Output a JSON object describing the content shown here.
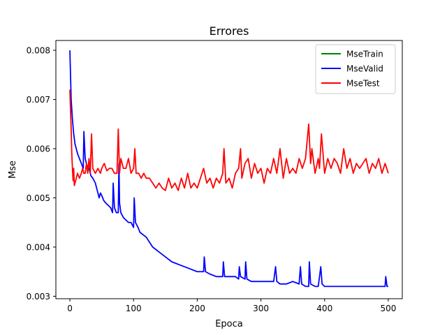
{
  "chart_data": {
    "type": "line",
    "title": "Errores",
    "xlabel": "Epoca",
    "ylabel": "Mse",
    "xlim": [
      -22,
      522
    ],
    "ylim": [
      0.00295,
      0.0082
    ],
    "xticks": [
      0,
      100,
      200,
      300,
      400,
      500
    ],
    "yticks": [
      0.003,
      0.004,
      0.005,
      0.006,
      0.007,
      0.008
    ],
    "ytick_labels": [
      "0.003",
      "0.004",
      "0.005",
      "0.006",
      "0.007",
      "0.008"
    ],
    "grid": false,
    "legend_position": "top-right",
    "series": [
      {
        "name": "MseTrain",
        "color": "#008000",
        "x": [],
        "y": []
      },
      {
        "name": "MseValid",
        "color": "#0000ff",
        "x": [
          0,
          2,
          4,
          6,
          8,
          10,
          12,
          15,
          18,
          21,
          22,
          24,
          27,
          30,
          33,
          36,
          40,
          43,
          46,
          48,
          50,
          53,
          56,
          60,
          64,
          67,
          68,
          70,
          73,
          76,
          77,
          78,
          80,
          84,
          88,
          92,
          96,
          100,
          101,
          103,
          107,
          110,
          115,
          120,
          125,
          130,
          135,
          140,
          145,
          150,
          160,
          170,
          180,
          190,
          200,
          210,
          211,
          213,
          220,
          230,
          240,
          241,
          243,
          250,
          260,
          265,
          266,
          268,
          275,
          276,
          278,
          285,
          290,
          300,
          310,
          320,
          323,
          325,
          330,
          340,
          350,
          360,
          362,
          364,
          370,
          375,
          376,
          378,
          385,
          390,
          394,
          396,
          400,
          410,
          420,
          430,
          440,
          450,
          460,
          470,
          480,
          490,
          495,
          496,
          498,
          500
        ],
        "y": [
          0.008,
          0.007,
          0.0066,
          0.0063,
          0.0061,
          0.006,
          0.0059,
          0.0058,
          0.0057,
          0.0056,
          0.00635,
          0.0058,
          0.00565,
          0.0056,
          0.00545,
          0.0054,
          0.0053,
          0.00515,
          0.005,
          0.0051,
          0.00505,
          0.00495,
          0.0049,
          0.00485,
          0.0048,
          0.0047,
          0.0053,
          0.0048,
          0.0047,
          0.0047,
          0.0057,
          0.0049,
          0.0047,
          0.0046,
          0.00455,
          0.0045,
          0.0045,
          0.0044,
          0.005,
          0.0045,
          0.0044,
          0.0043,
          0.00425,
          0.0042,
          0.0041,
          0.004,
          0.00395,
          0.0039,
          0.00385,
          0.0038,
          0.0037,
          0.00365,
          0.0036,
          0.00355,
          0.0035,
          0.0035,
          0.0038,
          0.0035,
          0.00345,
          0.0034,
          0.0034,
          0.0037,
          0.0034,
          0.0034,
          0.0034,
          0.00335,
          0.0036,
          0.0034,
          0.00335,
          0.0037,
          0.00335,
          0.0033,
          0.0033,
          0.0033,
          0.0033,
          0.0033,
          0.0036,
          0.0033,
          0.00325,
          0.00325,
          0.0033,
          0.00325,
          0.0036,
          0.00325,
          0.0032,
          0.0032,
          0.0037,
          0.00325,
          0.0032,
          0.0032,
          0.0036,
          0.00325,
          0.0032,
          0.0032,
          0.0032,
          0.0032,
          0.0032,
          0.0032,
          0.0032,
          0.0032,
          0.0032,
          0.0032,
          0.0032,
          0.0034,
          0.0032,
          0.0032
        ]
      },
      {
        "name": "MseTest",
        "color": "#ff0000",
        "x": [
          0,
          1,
          2,
          3,
          4,
          5,
          6,
          7,
          8,
          10,
          12,
          15,
          18,
          20,
          22,
          24,
          26,
          28,
          30,
          32,
          34,
          36,
          40,
          44,
          48,
          50,
          54,
          58,
          62,
          66,
          70,
          74,
          76,
          78,
          80,
          84,
          88,
          92,
          96,
          100,
          102,
          104,
          108,
          112,
          116,
          120,
          125,
          130,
          135,
          140,
          145,
          150,
          155,
          160,
          165,
          170,
          175,
          180,
          185,
          190,
          195,
          200,
          205,
          210,
          215,
          220,
          225,
          230,
          235,
          240,
          242,
          245,
          250,
          255,
          260,
          265,
          268,
          270,
          275,
          280,
          285,
          290,
          295,
          300,
          305,
          310,
          315,
          320,
          325,
          330,
          335,
          340,
          345,
          350,
          355,
          360,
          365,
          370,
          375,
          378,
          380,
          385,
          390,
          392,
          395,
          400,
          405,
          410,
          415,
          420,
          425,
          430,
          435,
          440,
          445,
          450,
          455,
          460,
          465,
          470,
          475,
          480,
          485,
          490,
          495,
          500
        ],
        "y": [
          0.0072,
          0.0068,
          0.0064,
          0.0059,
          0.0056,
          0.00535,
          0.0056,
          0.00525,
          0.0053,
          0.0054,
          0.0055,
          0.0054,
          0.0055,
          0.0056,
          0.0055,
          0.0055,
          0.0057,
          0.0055,
          0.0058,
          0.0055,
          0.0063,
          0.0056,
          0.0055,
          0.0056,
          0.0055,
          0.0056,
          0.0057,
          0.00555,
          0.0056,
          0.0056,
          0.0055,
          0.0055,
          0.0064,
          0.0055,
          0.0058,
          0.0056,
          0.0056,
          0.0058,
          0.0055,
          0.0056,
          0.006,
          0.0055,
          0.0055,
          0.0054,
          0.0055,
          0.0054,
          0.0054,
          0.0053,
          0.0052,
          0.0053,
          0.0052,
          0.00515,
          0.0054,
          0.0052,
          0.0053,
          0.00515,
          0.0054,
          0.0052,
          0.0055,
          0.0052,
          0.0053,
          0.0052,
          0.0054,
          0.0056,
          0.0053,
          0.0054,
          0.0052,
          0.0054,
          0.0053,
          0.0055,
          0.006,
          0.0053,
          0.0054,
          0.0052,
          0.0055,
          0.0056,
          0.006,
          0.0054,
          0.0057,
          0.0058,
          0.0054,
          0.0057,
          0.0055,
          0.0056,
          0.0053,
          0.0056,
          0.0055,
          0.0058,
          0.0055,
          0.006,
          0.0054,
          0.0058,
          0.0055,
          0.0056,
          0.0055,
          0.0058,
          0.0056,
          0.0058,
          0.0065,
          0.0057,
          0.006,
          0.0055,
          0.0058,
          0.0056,
          0.0063,
          0.0055,
          0.0058,
          0.0056,
          0.0058,
          0.0057,
          0.0055,
          0.006,
          0.0056,
          0.0058,
          0.0055,
          0.0057,
          0.0056,
          0.0057,
          0.0058,
          0.0055,
          0.0057,
          0.0056,
          0.0058,
          0.0055,
          0.0057,
          0.0055
        ]
      }
    ]
  }
}
